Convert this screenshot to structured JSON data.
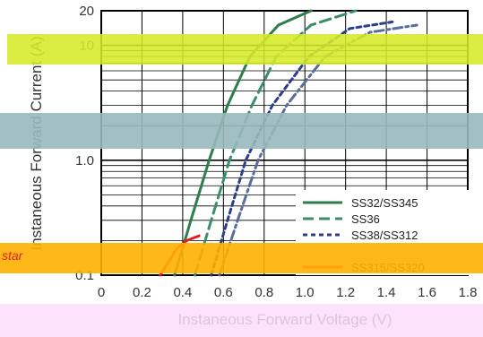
{
  "chart_data": {
    "type": "line",
    "title": "",
    "xlabel": "Instaneous Forward Voltage (V)",
    "ylabel": "Instaneous Forward Current (A)",
    "xlim": [
      0,
      1.8
    ],
    "ylim": [
      0.1,
      20
    ],
    "y_scale": "log",
    "grid": true,
    "legend_position": "bottom-right",
    "x_ticks": [
      "0",
      "0.2",
      "0.4",
      "0.6",
      "0.8",
      "1.0",
      "1.2",
      "1.4",
      "1.6",
      "1.8"
    ],
    "y_ticks": [
      {
        "value": 0.1,
        "label": "0.1"
      },
      {
        "value": 1.0,
        "label": "1.0"
      },
      {
        "value": 10,
        "label": "10"
      },
      {
        "value": 20,
        "label": "20"
      }
    ],
    "series": [
      {
        "name": "SS32/SS345",
        "color": "#2e7d4a",
        "dash": "solid",
        "x": [
          0.36,
          0.44,
          0.53,
          0.62,
          0.73,
          0.87,
          1.03
        ],
        "y": [
          0.1,
          0.3,
          1.0,
          3.0,
          8.0,
          15.0,
          20.0
        ]
      },
      {
        "name": "SS36",
        "color": "#3a8f68",
        "dash": "dashed",
        "x": [
          0.46,
          0.54,
          0.63,
          0.74,
          0.86,
          1.03,
          1.25
        ],
        "y": [
          0.1,
          0.3,
          1.0,
          3.0,
          8.0,
          15.0,
          20.0
        ]
      },
      {
        "name": "SS38/SS312",
        "color": "#2b3f8c",
        "dash": "dotted",
        "x": [
          0.54,
          0.62,
          0.71,
          0.84,
          1.02,
          1.22,
          1.43
        ],
        "y": [
          0.1,
          0.3,
          1.0,
          3.0,
          8.0,
          14.0,
          16.0
        ]
      },
      {
        "name": "",
        "color": "#5a6e9a",
        "dash": "dash-dot",
        "x": [
          0.58,
          0.67,
          0.77,
          0.91,
          1.1,
          1.32,
          1.55
        ],
        "y": [
          0.1,
          0.3,
          1.0,
          3.0,
          8.0,
          13.0,
          15.0
        ]
      },
      {
        "name": "SS315/SS320",
        "color": "#e02020",
        "dash": "solid",
        "x": [
          0.29,
          0.33,
          0.37,
          0.42,
          0.48
        ],
        "y": [
          0.1,
          0.13,
          0.17,
          0.2,
          0.22
        ]
      }
    ]
  },
  "overlay_text": "star"
}
